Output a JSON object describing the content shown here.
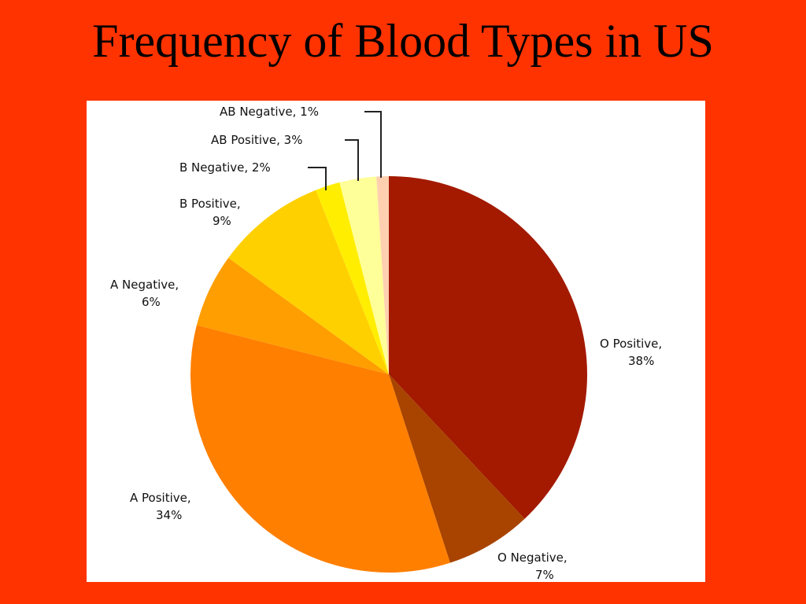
{
  "slide": {
    "title": "Frequency of Blood Types in US",
    "background": "#ff3300"
  },
  "chart_data": {
    "type": "pie",
    "title": "Frequency of Blood Types in US",
    "start": "12 o'clock",
    "direction": "clockwise",
    "slices": [
      {
        "name": "O Positive",
        "value": 38,
        "label": "O Positive,",
        "pct": "38%",
        "color": "#a31a00"
      },
      {
        "name": "O Negative",
        "value": 7,
        "label": "O Negative,",
        "pct": "7%",
        "color": "#a84400"
      },
      {
        "name": "A Positive",
        "value": 34,
        "label": "A Positive,",
        "pct": "34%",
        "color": "#ff7f00"
      },
      {
        "name": "A Negative",
        "value": 6,
        "label": "A Negative,",
        "pct": "6%",
        "color": "#ff9e00"
      },
      {
        "name": "B Positive",
        "value": 9,
        "label": "B Positive,",
        "pct": "9%",
        "color": "#ffd000"
      },
      {
        "name": "B Negative",
        "value": 2,
        "label": "B Negative, 2%",
        "pct": "",
        "color": "#ffee00"
      },
      {
        "name": "AB Positive",
        "value": 3,
        "label": "AB Positive, 3%",
        "pct": "",
        "color": "#ffff99"
      },
      {
        "name": "AB Negative",
        "value": 1,
        "label": "AB Negative, 1%",
        "pct": "",
        "color": "#ffd0b0"
      }
    ]
  }
}
